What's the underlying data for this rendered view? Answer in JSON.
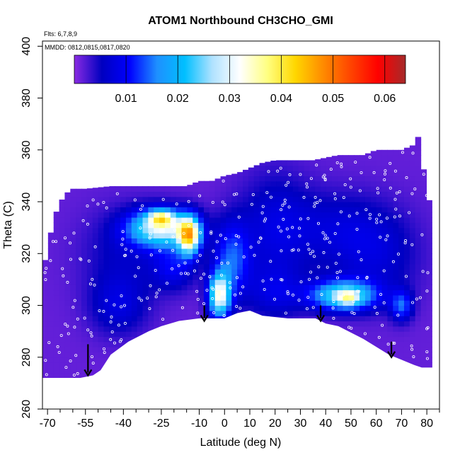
{
  "chart_data": {
    "type": "heatmap",
    "title": "ATOM1 Northbound CH3CHO_GMI",
    "subtitle_lines": [
      "Flts: 6,7,8,9",
      "MMDD: 0812,0815,0817,0820"
    ],
    "xlabel": "Latitude (deg N)",
    "ylabel": "Theta (C)",
    "xlim": [
      -72,
      85
    ],
    "ylim": [
      260,
      402
    ],
    "x_ticks": [
      -70,
      -55,
      -40,
      -25,
      -10,
      0,
      10,
      20,
      30,
      40,
      50,
      60,
      70,
      80
    ],
    "x_minor_ticks": [
      -65,
      -60,
      -50,
      -45,
      -35,
      -30,
      -20,
      -15,
      -5,
      5,
      15,
      25,
      35,
      45,
      55,
      65,
      75,
      85
    ],
    "y_ticks": [
      260,
      280,
      300,
      320,
      340,
      360,
      380,
      400
    ],
    "colorbar": {
      "range": [
        0,
        0.064
      ],
      "ticks": [
        0.01,
        0.02,
        0.03,
        0.04,
        0.05,
        0.06
      ],
      "tick_labels": [
        "0.01",
        "0.02",
        "0.03",
        "0.04",
        "0.05",
        "0.06"
      ],
      "colors": [
        "#8a2be2",
        "#0000c0",
        "#0000ff",
        "#1e90ff",
        "#00bfff",
        "#b0e2ff",
        "#ffffff",
        "#ffff80",
        "#ffd700",
        "#ff8c00",
        "#ff4500",
        "#ff0000",
        "#a52a2a"
      ]
    },
    "surface": [
      [
        -72,
        272
      ],
      [
        -57,
        272
      ],
      [
        -52,
        273
      ],
      [
        -49,
        275
      ],
      [
        -45,
        281
      ],
      [
        -38,
        286
      ],
      [
        -30,
        290
      ],
      [
        -25,
        292
      ],
      [
        -18,
        294
      ],
      [
        -10,
        295
      ],
      [
        -5,
        295
      ],
      [
        0,
        295
      ],
      [
        5,
        297
      ],
      [
        10,
        298
      ],
      [
        15,
        296
      ],
      [
        25,
        295
      ],
      [
        32,
        295
      ],
      [
        36,
        295
      ],
      [
        40,
        293
      ],
      [
        45,
        292
      ],
      [
        55,
        287
      ],
      [
        65,
        281
      ],
      [
        70,
        279
      ],
      [
        75,
        277
      ],
      [
        78,
        276
      ],
      [
        80,
        276
      ]
    ],
    "top_boundary": [
      [
        -72,
        312
      ],
      [
        -69,
        327
      ],
      [
        -66,
        338
      ],
      [
        -63,
        343
      ],
      [
        -60,
        345
      ],
      [
        -55,
        345
      ],
      [
        -45,
        346
      ],
      [
        -35,
        346
      ],
      [
        -25,
        346
      ],
      [
        -15,
        346
      ],
      [
        -10,
        348
      ],
      [
        -5,
        348
      ],
      [
        0,
        350
      ],
      [
        5,
        351
      ],
      [
        10,
        353
      ],
      [
        15,
        355
      ],
      [
        20,
        356
      ],
      [
        25,
        356
      ],
      [
        30,
        356
      ],
      [
        35,
        356
      ],
      [
        40,
        357
      ],
      [
        45,
        358
      ],
      [
        50,
        358
      ],
      [
        55,
        358
      ],
      [
        60,
        360
      ],
      [
        65,
        360
      ],
      [
        70,
        360
      ],
      [
        75,
        362
      ],
      [
        77,
        366
      ],
      [
        78,
        356
      ],
      [
        80,
        346
      ],
      [
        81,
        340
      ],
      [
        81,
        312
      ],
      [
        80,
        296
      ],
      [
        80,
        276
      ]
    ],
    "blobs": [
      {
        "x": -25,
        "y": 330,
        "sx": 9,
        "sy": 5,
        "v": 0.028
      },
      {
        "x": -25,
        "y": 334,
        "sx": 3.5,
        "sy": 2,
        "v": 0.02
      },
      {
        "x": -14,
        "y": 327,
        "sx": 3,
        "sy": 5,
        "v": 0.035
      },
      {
        "x": -2,
        "y": 304,
        "sx": 3,
        "sy": 6,
        "v": 0.03
      },
      {
        "x": 47,
        "y": 304,
        "sx": 9,
        "sy": 4,
        "v": 0.024
      },
      {
        "x": 49,
        "y": 303,
        "sx": 3,
        "sy": 2,
        "v": 0.012
      },
      {
        "x": 3,
        "y": 318,
        "sx": 5,
        "sy": 10,
        "v": 0.012
      },
      {
        "x": -20,
        "y": 315,
        "sx": 6,
        "sy": 6,
        "v": 0.008
      },
      {
        "x": 70,
        "y": 300,
        "sx": 3,
        "sy": 4,
        "v": 0.012
      },
      {
        "x": 45,
        "y": 330,
        "sx": 15,
        "sy": 10,
        "v": 0.005
      },
      {
        "x": 20,
        "y": 330,
        "sx": 10,
        "sy": 15,
        "v": 0.006
      },
      {
        "x": -40,
        "y": 320,
        "sx": 12,
        "sy": 12,
        "v": 0.004
      },
      {
        "x": 60,
        "y": 318,
        "sx": 12,
        "sy": 12,
        "v": 0.005
      },
      {
        "x": -42,
        "y": 300,
        "sx": 8,
        "sy": 8,
        "v": 0.006
      },
      {
        "x": 20,
        "y": 305,
        "sx": 8,
        "sy": 7,
        "v": 0.006
      }
    ],
    "arrows": [
      {
        "x": -54,
        "y_top": 285,
        "y_tip": 273
      },
      {
        "x": -8,
        "y_top": 300,
        "y_tip": 294
      },
      {
        "x": 38,
        "y_top": 300,
        "y_tip": 294
      },
      {
        "x": 66,
        "y_top": 286,
        "y_tip": 280
      }
    ]
  }
}
